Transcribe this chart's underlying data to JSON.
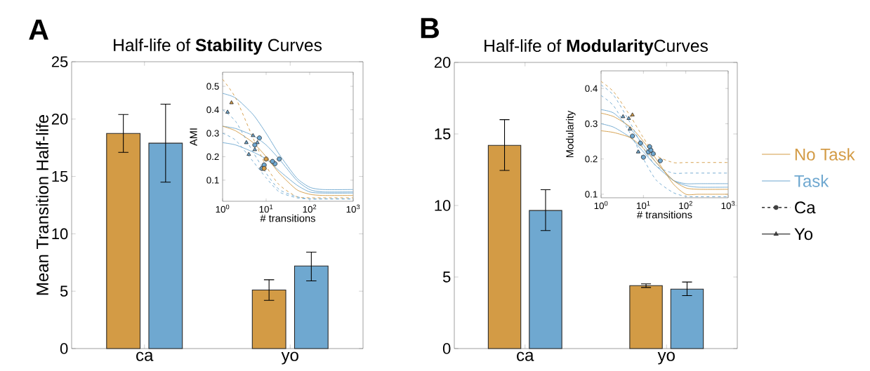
{
  "chart_data": [
    {
      "type": "bar",
      "title": "Half-life of **Stability** Curves",
      "ylabel": "Mean Transition Half-life",
      "categories": [
        "ca",
        "yo"
      ],
      "ylim": [
        0,
        25
      ],
      "yticks": [
        0,
        5,
        10,
        15,
        20,
        25
      ],
      "annotations": [
        "A"
      ],
      "series": [
        {
          "color": "#d39b45",
          "values": [
            18.75,
            5.1
          ],
          "errors": [
            [
              17.1,
              20.4
            ],
            [
              4.2,
              6.0
            ]
          ]
        },
        {
          "color": "#6fa8d0",
          "values": [
            17.9,
            7.2
          ],
          "errors": [
            [
              14.5,
              21.3
            ],
            [
              5.9,
              8.4
            ]
          ]
        }
      ]
    },
    {
      "type": "line",
      "xlabel": "# transitions",
      "ylabel": "AMI",
      "log": "x",
      "xlim": [
        1,
        1000
      ],
      "xticks": [
        {
          "value": 1,
          "label": "10$^{0}$"
        },
        {
          "value": 10,
          "label": "10$^{1}$"
        },
        {
          "value": 100,
          "label": "10$^{2}$"
        },
        {
          "value": 1000,
          "label": "10$^{3}$"
        }
      ],
      "ylim": [
        0.01,
        0.56
      ],
      "yticks": [
        0.1,
        0.2,
        0.3,
        0.4,
        0.5
      ],
      "x": [
        1,
        2,
        5,
        10,
        20,
        50,
        100,
        200,
        1000
      ],
      "series": [
        {
          "color": "#6fa8d0",
          "line_style": "solid",
          "values": [
            0.47,
            0.45,
            0.38,
            0.3,
            0.21,
            0.11,
            0.07,
            0.06,
            0.06
          ]
        },
        {
          "color": "#6fa8d0",
          "line_style": "solid",
          "values": [
            0.33,
            0.32,
            0.29,
            0.25,
            0.19,
            0.1,
            0.06,
            0.05,
            0.05
          ]
        },
        {
          "color": "#6fa8d0",
          "line_style": "solid",
          "values": [
            0.26,
            0.25,
            0.22,
            0.19,
            0.14,
            0.08,
            0.05,
            0.045,
            0.045
          ]
        },
        {
          "color": "#d39b45",
          "line_style": "solid",
          "values": [
            0.33,
            0.31,
            0.26,
            0.2,
            0.13,
            0.06,
            0.04,
            0.035,
            0.035
          ]
        },
        {
          "color": "#d39b45",
          "line_style": "dashed",
          "values": [
            0.53,
            0.45,
            0.28,
            0.16,
            0.08,
            0.03,
            0.025,
            0.025,
            0.025
          ]
        },
        {
          "color": "#6fa8d0",
          "line_style": "dashed",
          "values": [
            0.4,
            0.35,
            0.22,
            0.13,
            0.06,
            0.03,
            0.02,
            0.02,
            0.02
          ]
        },
        {
          "color": "#6fa8d0",
          "line_style": "dashed",
          "values": [
            0.3,
            0.27,
            0.18,
            0.11,
            0.05,
            0.025,
            0.02,
            0.02,
            0.02
          ]
        },
        {
          "type": "scatter",
          "marker": "triangle",
          "color": "#6fa8d0",
          "x": [
            1.3,
            3.5,
            5,
            6.3,
            5.5,
            4
          ],
          "values": [
            0.39,
            0.26,
            0.29,
            0.26,
            0.23,
            0.21
          ]
        },
        {
          "type": "scatter",
          "marker": "triangle",
          "color": "#d39b45",
          "x": [
            1.6
          ],
          "values": [
            0.43
          ]
        },
        {
          "type": "scatter",
          "marker": "circle",
          "color": "#6fa8d0",
          "x": [
            7,
            5.5,
            8,
            9,
            16,
            20,
            14
          ],
          "values": [
            0.28,
            0.25,
            0.15,
            0.165,
            0.17,
            0.19,
            0.18
          ]
        },
        {
          "type": "scatter",
          "marker": "circle",
          "color": "#d39b45",
          "x": [
            9,
            10
          ],
          "values": [
            0.15,
            0.19
          ]
        }
      ]
    },
    {
      "type": "bar",
      "title": "Half-life of **Modularity**Curves",
      "categories": [
        "ca",
        "yo"
      ],
      "ylim": [
        0,
        20
      ],
      "yticks": [
        0,
        5,
        10,
        15,
        20
      ],
      "legend": "right",
      "annotations": [
        "B",
        "Ca",
        "Yo"
      ],
      "series": [
        {
          "name": "No Task",
          "color": "#d39b45",
          "values": [
            14.2,
            4.4
          ],
          "errors": [
            [
              12.45,
              16.0
            ],
            [
              4.27,
              4.52
            ]
          ]
        },
        {
          "name": "Task",
          "color": "#6fa8d0",
          "values": [
            9.65,
            4.15
          ],
          "errors": [
            [
              8.25,
              11.1
            ],
            [
              3.7,
              4.65
            ]
          ]
        }
      ]
    },
    {
      "type": "line",
      "xlabel": "# transitions",
      "ylabel": "Modularity",
      "log": "x",
      "xlim": [
        1,
        1000
      ],
      "xticks": [
        {
          "value": 1,
          "label": "10$^{0}$"
        },
        {
          "value": 10,
          "label": "10$^{1}$"
        },
        {
          "value": 100,
          "label": "10$^{2}$"
        },
        {
          "value": 1000,
          "label": "10$^{3}$"
        }
      ],
      "ylim": [
        0.09,
        0.45
      ],
      "yticks": [
        0.1,
        0.2,
        0.3,
        0.4
      ],
      "x": [
        1,
        2,
        5,
        10,
        20,
        50,
        100,
        200,
        1000
      ],
      "series": [
        {
          "color": "#6fa8d0",
          "line_style": "solid",
          "values": [
            0.34,
            0.33,
            0.285,
            0.24,
            0.19,
            0.14,
            0.125,
            0.12,
            0.12
          ]
        },
        {
          "color": "#6fa8d0",
          "line_style": "solid",
          "values": [
            0.3,
            0.29,
            0.26,
            0.22,
            0.18,
            0.14,
            0.13,
            0.13,
            0.13
          ]
        },
        {
          "color": "#d39b45",
          "line_style": "solid",
          "values": [
            0.33,
            0.32,
            0.29,
            0.25,
            0.2,
            0.13,
            0.1,
            0.1,
            0.1
          ]
        },
        {
          "color": "#d39b45",
          "line_style": "solid",
          "values": [
            0.28,
            0.275,
            0.26,
            0.23,
            0.19,
            0.14,
            0.118,
            0.114,
            0.114
          ]
        },
        {
          "color": "#d39b45",
          "line_style": "dashed",
          "values": [
            0.42,
            0.39,
            0.32,
            0.26,
            0.21,
            0.19,
            0.19,
            0.19,
            0.19
          ]
        },
        {
          "color": "#6fa8d0",
          "line_style": "dashed",
          "values": [
            0.41,
            0.38,
            0.3,
            0.23,
            0.18,
            0.16,
            0.16,
            0.16,
            0.16
          ]
        },
        {
          "color": "#6fa8d0",
          "line_style": "dashed",
          "values": [
            0.38,
            0.35,
            0.27,
            0.2,
            0.14,
            0.105,
            0.094,
            0.093,
            0.093
          ]
        },
        {
          "type": "scatter",
          "marker": "triangle",
          "color": "#6fa8d0",
          "x": [
            3.3,
            4.5,
            7.5,
            4.8
          ],
          "values": [
            0.32,
            0.315,
            0.22,
            0.285
          ]
        },
        {
          "type": "scatter",
          "marker": "triangle",
          "color": "#d39b45",
          "x": [
            5.5
          ],
          "values": [
            0.325
          ]
        },
        {
          "type": "scatter",
          "marker": "circle",
          "color": "#6fa8d0",
          "x": [
            5.5,
            8.5,
            10,
            13,
            14,
            17,
            25,
            15
          ],
          "values": [
            0.265,
            0.245,
            0.205,
            0.22,
            0.235,
            0.215,
            0.195,
            0.225
          ]
        }
      ]
    }
  ]
}
